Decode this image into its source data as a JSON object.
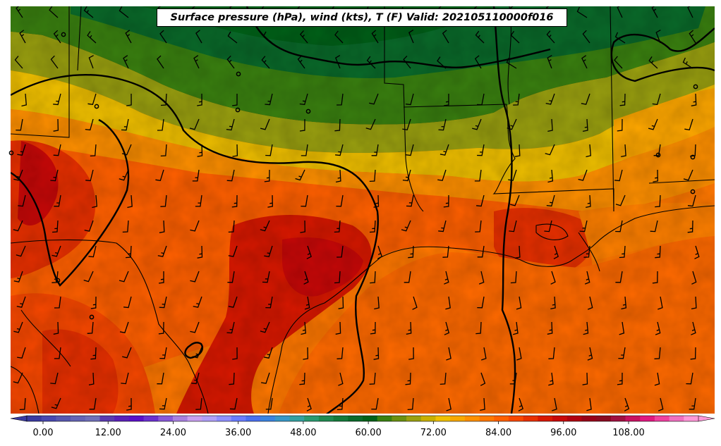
{
  "title": "Surface pressure (hPa), wind (kts), T (F) Valid: 202105110000f016",
  "colorbar": {
    "tick_labels": [
      "0.00",
      "12.00",
      "24.00",
      "36.00",
      "48.00",
      "60.00",
      "72.00",
      "84.00",
      "96.00",
      "108.00"
    ],
    "range": [
      0,
      120
    ],
    "step": 3,
    "extend": "both",
    "colors": [
      "#3a3aa0",
      "#4848b0",
      "#5858b0",
      "#6565b5",
      "#7070b8",
      "#5a3ab0",
      "#5a20b8",
      "#5a10c8",
      "#6a30d0",
      "#8858d8",
      "#a880e0",
      "#c8a0f0",
      "#b0a0f8",
      "#9090ff",
      "#6a7cff",
      "#4a70f0",
      "#3a84e0",
      "#3898c8",
      "#34a0a0",
      "#2a9a70",
      "#208a50",
      "#147a3a",
      "#0a6a2a",
      "#006018",
      "#3a8010",
      "#6a9010",
      "#9aa010",
      "#c8b000",
      "#f0c000",
      "#f8a800",
      "#ff9000",
      "#ff7800",
      "#ff6000",
      "#f84800",
      "#e83000",
      "#d81800",
      "#c80808",
      "#b00010",
      "#980018",
      "#8a0a20",
      "#a01040",
      "#c81060",
      "#e01880",
      "#f040a0",
      "#f070c0",
      "#ff98d8"
    ]
  },
  "wind_units": "kts",
  "pressure_units": "hPa",
  "temperature_units": "F"
}
